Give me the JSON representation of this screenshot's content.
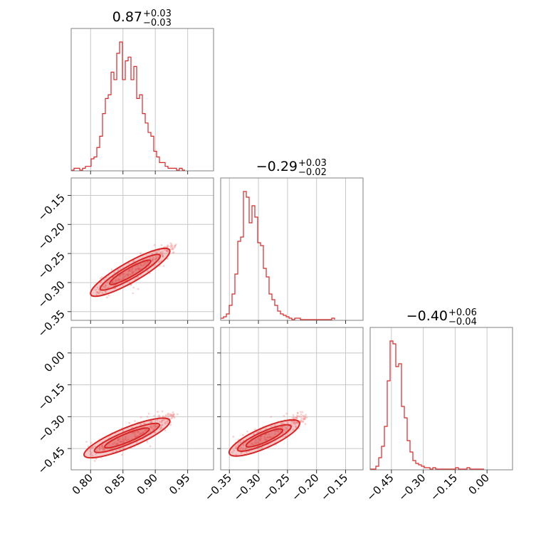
{
  "chart_data": {
    "type": "corner",
    "color": "#d62728",
    "titles": [
      {
        "value": "0.87",
        "plus": "+0.03",
        "minus": "−0.03"
      },
      {
        "value": "−0.29",
        "plus": "+0.03",
        "minus": "−0.02"
      },
      {
        "value": "−0.40",
        "plus": "+0.06",
        "minus": "−0.04"
      }
    ],
    "axes": {
      "p1": {
        "range": [
          0.77,
          0.99
        ],
        "ticks": [
          0.8,
          0.85,
          0.9,
          0.95
        ],
        "tick_labels": [
          "0.80",
          "0.85",
          "0.90",
          "0.95"
        ]
      },
      "p2": {
        "range": [
          -0.365,
          -0.12
        ],
        "ticks": [
          -0.35,
          -0.3,
          -0.25,
          -0.2,
          -0.15
        ],
        "tick_labels": [
          "−0.35",
          "−0.30",
          "−0.25",
          "−0.20",
          "−0.15"
        ]
      },
      "p3": {
        "range": [
          -0.55,
          0.12
        ],
        "ticks": [
          -0.45,
          -0.3,
          -0.15,
          0.0
        ],
        "tick_labels": [
          "−0.45",
          "−0.30",
          "−0.15",
          "0.00"
        ]
      }
    },
    "hist_1d": [
      {
        "param": "p1",
        "edges_start": 0.77,
        "bin_width": 0.0044,
        "counts": [
          0,
          1,
          1,
          0,
          1,
          2,
          2,
          6,
          7,
          12,
          18,
          30,
          38,
          40,
          52,
          48,
          62,
          68,
          48,
          58,
          60,
          48,
          55,
          38,
          40,
          30,
          25,
          20,
          18,
          10,
          7,
          4,
          4,
          2,
          1,
          1,
          1,
          0,
          1,
          0
        ]
      },
      {
        "param": "p2",
        "edges_start": -0.365,
        "bin_width": 0.0049,
        "counts": [
          1,
          2,
          4,
          10,
          18,
          32,
          55,
          58,
          90,
          86,
          68,
          80,
          72,
          54,
          52,
          36,
          30,
          18,
          14,
          10,
          6,
          4,
          3,
          2,
          1,
          0,
          1,
          1,
          0,
          0,
          0,
          0,
          0,
          0,
          0,
          0,
          0,
          0,
          0,
          1
        ]
      },
      {
        "param": "p3",
        "edges_start": -0.55,
        "bin_width": 0.0134,
        "counts": [
          0,
          0,
          2,
          8,
          16,
          30,
          62,
          90,
          88,
          72,
          74,
          44,
          36,
          20,
          12,
          6,
          4,
          3,
          2,
          1,
          1,
          0,
          1,
          0,
          0,
          0,
          0,
          0,
          0,
          0,
          1,
          0,
          0,
          0,
          1,
          0,
          0,
          0,
          0,
          0
        ]
      }
    ],
    "hist_2d": [
      {
        "x": "p1",
        "y": "p2",
        "ridge": [
          [
            0.81,
            -0.315
          ],
          [
            0.84,
            -0.298
          ],
          [
            0.87,
            -0.28
          ],
          [
            0.9,
            -0.258
          ],
          [
            0.93,
            -0.235
          ]
        ]
      },
      {
        "x": "p1",
        "y": "p3",
        "ridge": [
          [
            0.8,
            -0.47
          ],
          [
            0.84,
            -0.425
          ],
          [
            0.87,
            -0.385
          ],
          [
            0.9,
            -0.345
          ],
          [
            0.93,
            -0.29
          ]
        ]
      },
      {
        "x": "p2",
        "y": "p3",
        "ridge": [
          [
            -0.34,
            -0.455
          ],
          [
            -0.31,
            -0.42
          ],
          [
            -0.28,
            -0.385
          ],
          [
            -0.25,
            -0.345
          ],
          [
            -0.22,
            -0.305
          ]
        ]
      }
    ]
  }
}
